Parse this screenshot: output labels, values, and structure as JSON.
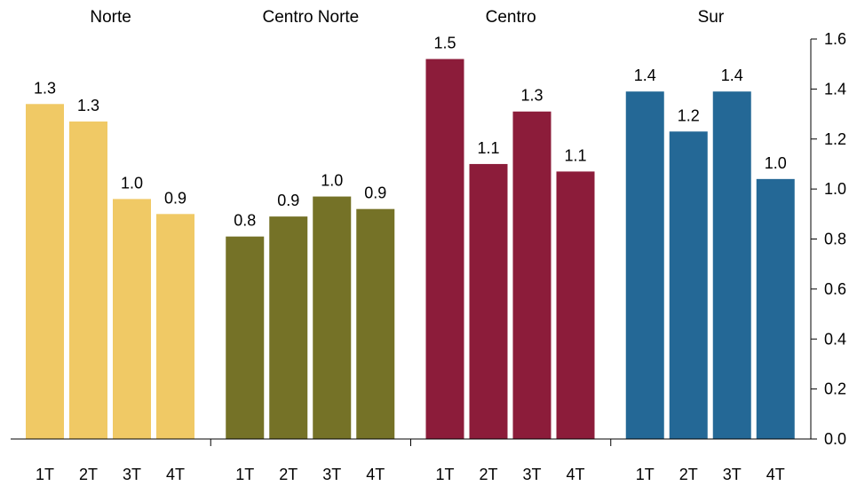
{
  "chart_data": {
    "type": "bar",
    "groups": [
      {
        "name": "Norte",
        "color": "#F0C965",
        "categories": [
          "1T",
          "2T",
          "3T",
          "4T"
        ],
        "values": [
          1.34,
          1.27,
          0.96,
          0.9
        ],
        "labels": [
          "1.3",
          "1.3",
          "1.0",
          "0.9"
        ]
      },
      {
        "name": "Centro Norte",
        "color": "#757227",
        "categories": [
          "1T",
          "2T",
          "3T",
          "4T"
        ],
        "values": [
          0.81,
          0.89,
          0.97,
          0.92
        ],
        "labels": [
          "0.8",
          "0.9",
          "1.0",
          "0.9"
        ]
      },
      {
        "name": "Centro",
        "color": "#8C1C3A",
        "categories": [
          "1T",
          "2T",
          "3T",
          "4T"
        ],
        "values": [
          1.52,
          1.1,
          1.31,
          1.07
        ],
        "labels": [
          "1.5",
          "1.1",
          "1.3",
          "1.1"
        ]
      },
      {
        "name": "Sur",
        "color": "#246896",
        "categories": [
          "1T",
          "2T",
          "3T",
          "4T"
        ],
        "values": [
          1.39,
          1.23,
          1.39,
          1.04
        ],
        "labels": [
          "1.4",
          "1.2",
          "1.4",
          "1.0"
        ]
      }
    ],
    "yaxis_ticks": [
      "0.0",
      "0.2",
      "0.4",
      "0.6",
      "0.8",
      "1.0",
      "1.2",
      "1.4",
      "1.6"
    ],
    "ylim": [
      0,
      1.6
    ],
    "yaxis_side": "right",
    "grid": false
  }
}
